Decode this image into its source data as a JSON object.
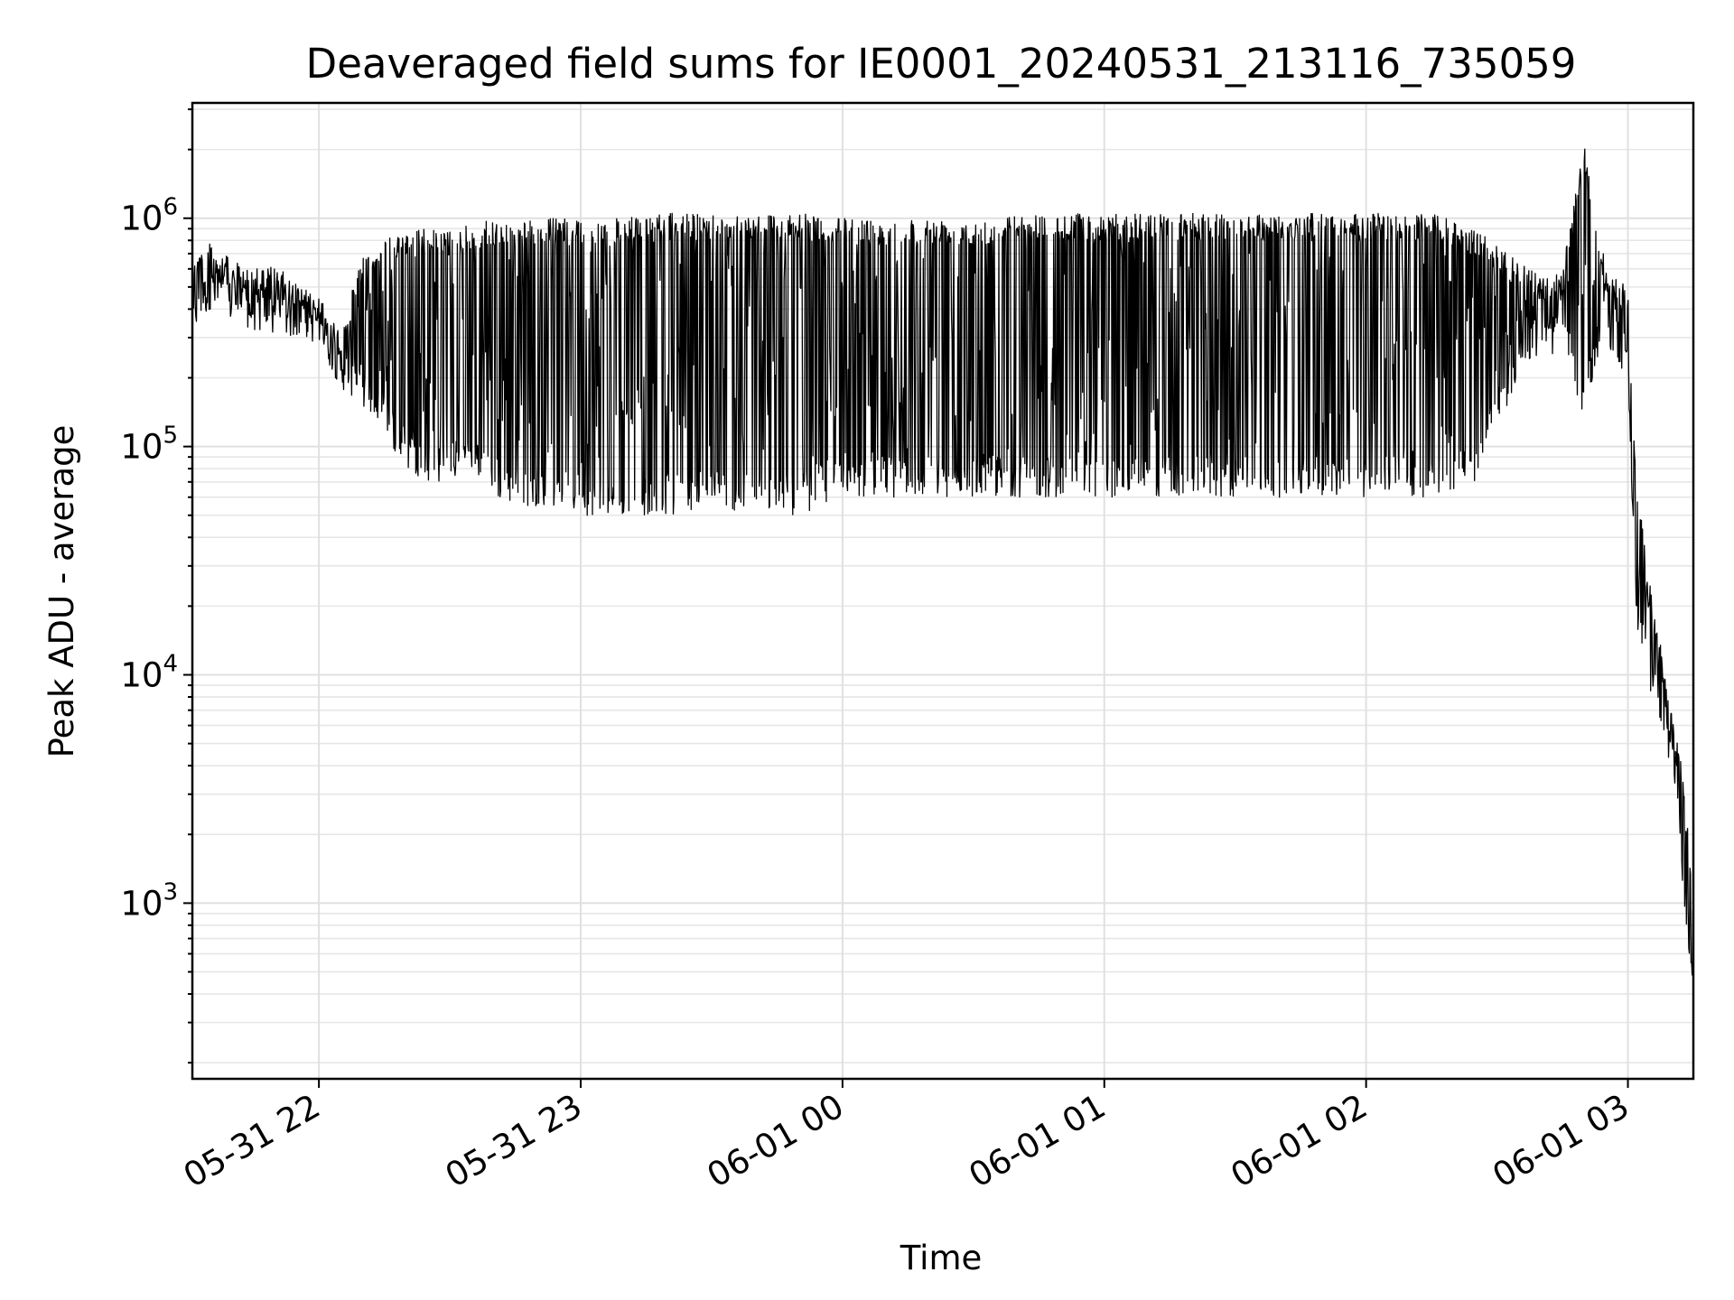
{
  "chart_data": {
    "type": "line",
    "title": "Deaveraged field sums for IE0001_20240531_213116_735059",
    "xlabel": "Time",
    "ylabel": "Peak ADU - average",
    "yscale": "log",
    "ylim": [
      170,
      3200000
    ],
    "xlim": [
      "05-31 21:31",
      "06-01 03:15"
    ],
    "grid": "on (major and minor, both axes)",
    "line_color": "#000000",
    "x_ticks": [
      {
        "time": "05-31 22:00",
        "label": "05-31 22"
      },
      {
        "time": "05-31 23:00",
        "label": "05-31 23"
      },
      {
        "time": "06-01 00:00",
        "label": "06-01 00"
      },
      {
        "time": "06-01 01:00",
        "label": "06-01 01"
      },
      {
        "time": "06-01 02:00",
        "label": "06-01 02"
      },
      {
        "time": "06-01 03:00",
        "label": "06-01 03"
      }
    ],
    "y_ticks": [
      {
        "value": 1000,
        "base": "10",
        "exp": "3"
      },
      {
        "value": 10000,
        "base": "10",
        "exp": "4"
      },
      {
        "value": 100000,
        "base": "10",
        "exp": "5"
      },
      {
        "value": 1000000,
        "base": "10",
        "exp": "6"
      }
    ],
    "series": [
      {
        "x": [
          "05-31 21:31",
          "05-31 21:35",
          "05-31 21:40",
          "05-31 21:45",
          "05-31 21:50",
          "05-31 21:55",
          "05-31 22:00",
          "05-31 22:05",
          "05-31 22:10",
          "05-31 22:15",
          "05-31 22:20",
          "05-31 22:25",
          "05-31 22:30",
          "05-31 22:35",
          "05-31 22:40",
          "05-31 22:45",
          "05-31 22:50",
          "05-31 22:55",
          "05-31 23:00",
          "05-31 23:10",
          "05-31 23:20",
          "05-31 23:30",
          "05-31 23:40",
          "05-31 23:50",
          "06-01 00:00",
          "06-01 00:15",
          "06-01 00:30",
          "06-01 00:45",
          "06-01 01:00",
          "06-01 01:15",
          "06-01 01:30",
          "06-01 01:45",
          "06-01 02:00",
          "06-01 02:15",
          "06-01 02:25",
          "06-01 02:35",
          "06-01 02:40",
          "06-01 02:45",
          "06-01 02:50",
          "06-01 02:55",
          "06-01 03:00",
          "06-01 03:02",
          "06-01 03:05",
          "06-01 03:08",
          "06-01 03:10",
          "06-01 03:12",
          "06-01 03:14",
          "06-01 03:15"
        ],
        "high": [
          700000,
          800000,
          650000,
          600000,
          620000,
          520000,
          450000,
          320000,
          700000,
          800000,
          900000,
          900000,
          880000,
          950000,
          980000,
          950000,
          1000000,
          1000000,
          1000000,
          1000000,
          1050000,
          1050000,
          1050000,
          1050000,
          1000000,
          1000000,
          1000000,
          1050000,
          1050000,
          1050000,
          1050000,
          1050000,
          1050000,
          1050000,
          900000,
          650000,
          550000,
          600000,
          2100000,
          600000,
          500000,
          70000,
          25000,
          12000,
          7000,
          4500,
          2000,
          900
        ],
        "low": [
          300000,
          400000,
          350000,
          320000,
          300000,
          300000,
          280000,
          180000,
          150000,
          110000,
          80000,
          70000,
          70000,
          80000,
          60000,
          55000,
          55000,
          55000,
          50000,
          50000,
          50000,
          55000,
          50000,
          50000,
          60000,
          60000,
          60000,
          60000,
          60000,
          60000,
          60000,
          60000,
          60000,
          60000,
          70000,
          200000,
          250000,
          250000,
          130000,
          280000,
          200000,
          15000,
          8000,
          5500,
          3500,
          1500,
          600,
          270
        ]
      }
    ]
  }
}
